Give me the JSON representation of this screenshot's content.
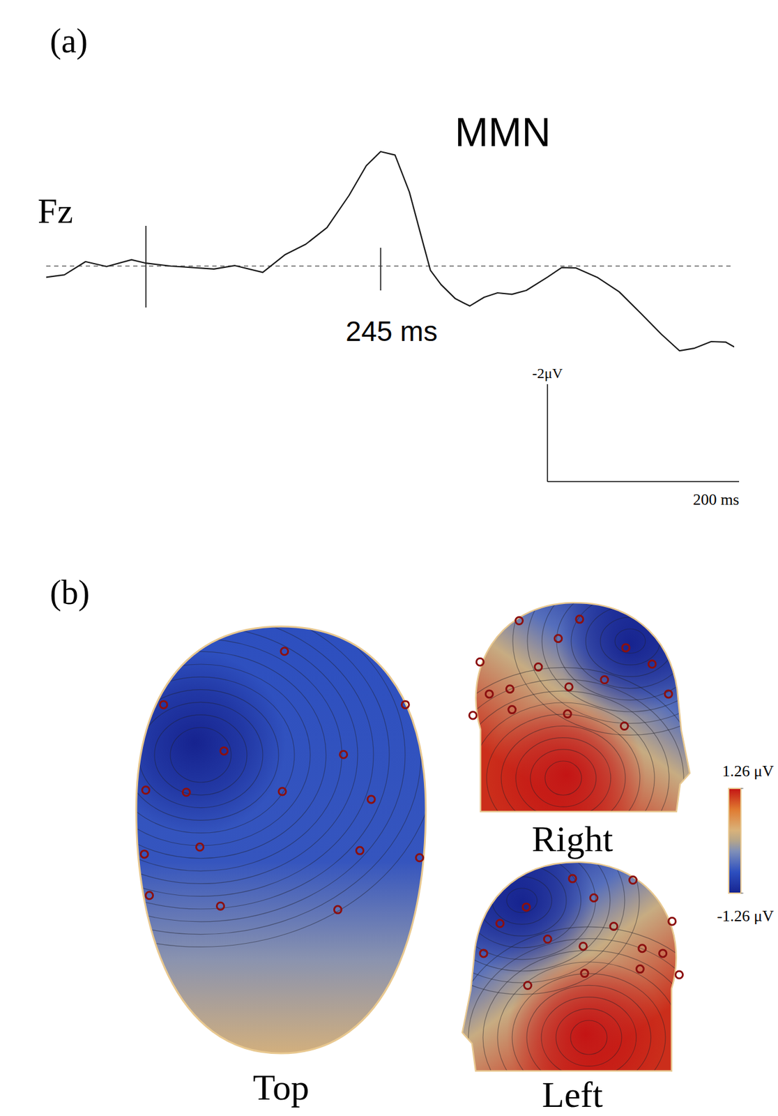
{
  "chart_data": [
    {
      "type": "line",
      "panel_label": "(a)",
      "channel": "Fz",
      "color": "#1a1a1a",
      "x": [
        -104,
        -85,
        -63,
        -41,
        -15,
        0,
        26,
        71,
        93,
        122,
        145,
        167,
        189,
        212,
        230,
        245,
        260,
        275,
        290,
        297,
        308,
        323,
        338,
        353,
        367,
        382,
        397,
        419,
        434,
        449,
        471,
        494,
        516,
        538,
        557,
        572,
        590,
        605,
        614
      ],
      "values": [
        0.23,
        0.18,
        -0.09,
        0.01,
        -0.13,
        -0.06,
        0,
        0.06,
        -0.01,
        0.13,
        -0.23,
        -0.45,
        -0.79,
        -1.45,
        -2.06,
        -2.35,
        -2.28,
        -1.52,
        -0.42,
        0.09,
        0.38,
        0.67,
        0.82,
        0.64,
        0.55,
        0.58,
        0.5,
        0.23,
        0.03,
        0.04,
        0.23,
        0.53,
        0.96,
        1.4,
        1.74,
        1.69,
        1.55,
        1.56,
        1.66
      ],
      "xlim": [
        -104,
        614
      ],
      "ylim": [
        4.5,
        -3.5
      ],
      "baseline": 0,
      "tick_labels": false,
      "events": [
        {
          "x": 0
        },
        {
          "x": 245,
          "label": "245 ms"
        }
      ],
      "annotations": [
        {
          "text": "MMN",
          "x": 245
        }
      ],
      "scale_bar": {
        "y": -2,
        "y_label": "-2μV",
        "x": 200,
        "x_label": "200 ms"
      }
    },
    {
      "type": "topomap",
      "panel_label": "(b)",
      "views": [
        "Top",
        "Right",
        "Left"
      ],
      "colorbar": {
        "range": [
          -1.26,
          1.26
        ],
        "ticks": [
          {
            "value": 1.26,
            "label": "1.26 μV"
          },
          {
            "value": -1.26,
            "label": "-1.26 μV"
          }
        ]
      }
    }
  ]
}
